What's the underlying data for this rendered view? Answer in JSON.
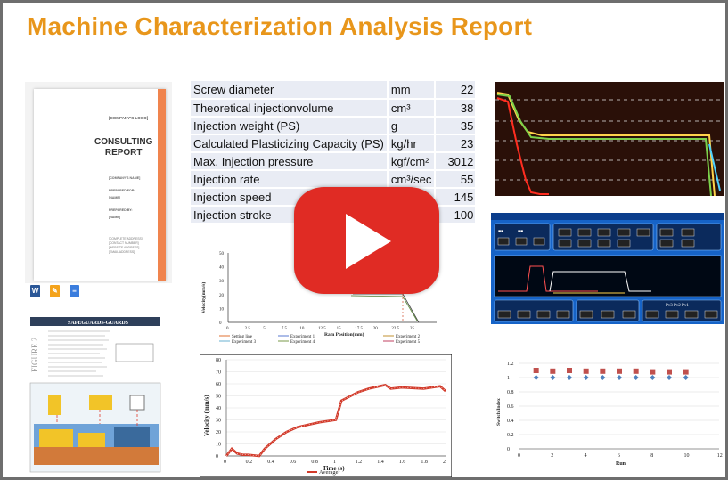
{
  "title": "Machine Characterization Analysis Report",
  "doc": {
    "logo": "[COMPANY'S LOGO]",
    "title_line1": "CONSULTING",
    "title_line2": "REPORT",
    "company_name": "[COMPANY'S NAME]",
    "prepared_for": "PREPARED FOR:",
    "name1": "[NAME]",
    "prepared_by": "PREPARED BY:",
    "name2": "[NAME]",
    "address": [
      "[COMPLETE ADDRESS]",
      "[CONTACT NUMBER]",
      "[WEBSITE ADDRESS]",
      "[EMAIL ADDRESS]"
    ]
  },
  "spec_table": [
    {
      "param": "Screw diameter",
      "unit": "mm",
      "value": "22"
    },
    {
      "param": "Theoretical injectionvolume",
      "unit": "cm³",
      "value": "38"
    },
    {
      "param": "Injection weight (PS)",
      "unit": "g",
      "value": "35"
    },
    {
      "param": "Calculated Plasticizing Capacity (PS)",
      "unit": "kg/hr",
      "value": "23"
    },
    {
      "param": "Max. Injection pressure",
      "unit": "kgf/cm²",
      "value": "3012"
    },
    {
      "param": "Injection rate",
      "unit": "cm³/sec",
      "value": "55"
    },
    {
      "param": "Injection speed",
      "unit": "",
      "value": "145"
    },
    {
      "param": "Injection stroke",
      "unit": "",
      "value": "100"
    }
  ],
  "figure2": {
    "label": "FIGURE 2",
    "heading": "SAFEGUARDS-GUARDS"
  },
  "velocity_ram_chart": {
    "ylabel": "Velocity(mm/s)",
    "xlabel": "Ram Position(mm)",
    "yticks": [
      "50",
      "40",
      "30",
      "20",
      "10",
      "0"
    ],
    "xticks": [
      "0",
      "2.5",
      "5",
      "7.5",
      "10",
      "12.5",
      "15",
      "17.5",
      "20",
      "22.5",
      "25"
    ],
    "legend": [
      "Setting line",
      "Experiment 1",
      "Experiment 2",
      "Experiment 3",
      "Experiment 4",
      "Experiment 5"
    ]
  },
  "velocity_time_chart": {
    "ylabel": "Velocity (mm/s)",
    "xlabel": "Time (s)",
    "legend": "Average",
    "yticks": [
      "80",
      "70",
      "60",
      "50",
      "40",
      "30",
      "20",
      "10",
      "0"
    ],
    "xticks": [
      "0",
      "0.2",
      "0.4",
      "0.6",
      "0.8",
      "1",
      "1.2",
      "1.4",
      "1.6",
      "1.8",
      "2"
    ]
  },
  "switch_chart": {
    "ylabel": "Switch Index",
    "xlabel": "Run",
    "yticks": [
      "1.2",
      "1",
      "0.8",
      "0.6",
      "0.4",
      "0.2",
      "0"
    ],
    "xticks": [
      "0",
      "2",
      "4",
      "6",
      "8",
      "10",
      "12"
    ]
  },
  "colors": {
    "title": "#e8961b",
    "youtube_red": "#e02b24",
    "table_row": "#e9ecf4",
    "machine_screen": "#1663c7"
  }
}
